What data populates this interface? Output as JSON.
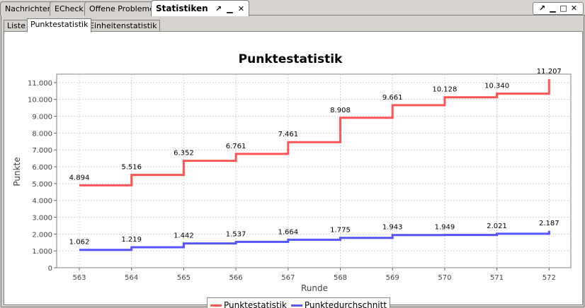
{
  "view_tabs": {
    "nachrichten": "Nachrichten",
    "echeck": "ECheck",
    "offene_probleme": "Offene Probleme",
    "statistiken": "Statistiken"
  },
  "sub_tabs": {
    "liste": "Liste",
    "punktestatistik": "Punktestatistik",
    "einheitenstatistik": "Einheitenstatistik"
  },
  "chart_data": {
    "type": "line",
    "step": true,
    "title": "Punktestatistik",
    "xlabel": "Runde",
    "ylabel": "Punkte",
    "x": [
      563,
      564,
      565,
      566,
      567,
      568,
      569,
      570,
      571,
      572
    ],
    "x_tick_labels": [
      "563",
      "564",
      "565",
      "566",
      "567",
      "568",
      "569",
      "570",
      "571",
      "572"
    ],
    "ylim": [
      0,
      11500
    ],
    "y_ticks": [
      0,
      1000,
      2000,
      3000,
      4000,
      5000,
      6000,
      7000,
      8000,
      9000,
      10000,
      11000
    ],
    "y_tick_labels": [
      "0",
      "1.000",
      "2.000",
      "3.000",
      "4.000",
      "5.000",
      "6.000",
      "7.000",
      "8.000",
      "9.000",
      "10.000",
      "11.000"
    ],
    "grid": true,
    "legend_position": "bottom",
    "series": [
      {
        "name": "Punktestatistik",
        "color": "#ff5555",
        "values": [
          4894,
          5516,
          6352,
          6761,
          7461,
          8908,
          9661,
          10128,
          10340,
          11207
        ],
        "labels": [
          "4.894",
          "5.516",
          "6.352",
          "6.761",
          "7.461",
          "8.908",
          "9.661",
          "10.128",
          "10.340",
          "11.207"
        ]
      },
      {
        "name": "Punktedurchschnitt",
        "color": "#5555ff",
        "values": [
          1062,
          1219,
          1442,
          1537,
          1664,
          1775,
          1943,
          1949,
          2021,
          2187
        ],
        "labels": [
          "1.062",
          "1.219",
          "1.442",
          "1.537",
          "1.664",
          "1.775",
          "1.943",
          "1.949",
          "2.021",
          "2.187"
        ]
      }
    ]
  }
}
